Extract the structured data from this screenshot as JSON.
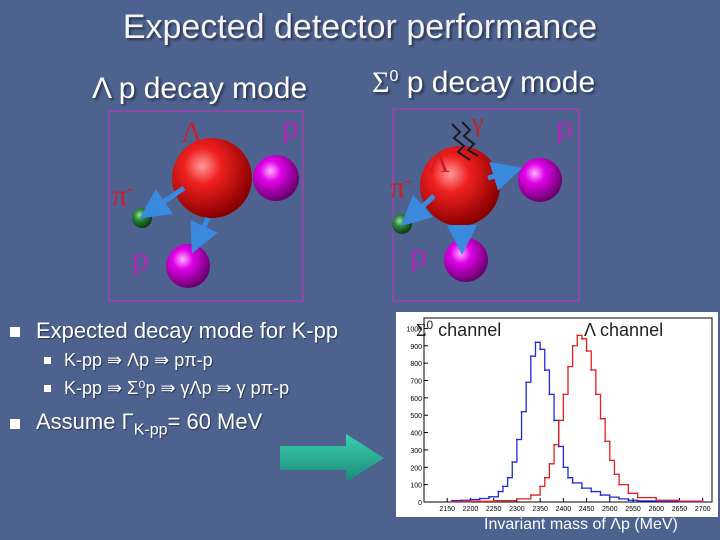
{
  "title": "Expected detector performance",
  "lambda_panel": {
    "header": "Λ p decay mode",
    "labels": {
      "lambda": "Λ",
      "p_top": "p",
      "pi": "π",
      "pi_sup": "-",
      "p_bottom": "p"
    }
  },
  "sigma_panel": {
    "header_sym": "Σ",
    "header_sup": "0",
    "header_rest": " p decay mode",
    "labels": {
      "gamma": "γ",
      "lambda": "Λ",
      "p_top": "p",
      "pi": "π",
      "pi_sup": "-",
      "p_bottom": "p"
    }
  },
  "bullets": {
    "b1": "Expected decay mode for K-pp",
    "b1a": "K-pp ⇛ Λp ⇛  pπ-p",
    "b1b": "K-pp ⇛ Σ⁰p ⇛ γΛp ⇛ γ pπ-p",
    "b2_pre": "Assume  Γ",
    "b2_sub": "K-pp",
    "b2_post": "= 60 MeV"
  },
  "colors": {
    "background": "#4e6290",
    "lambda_ball": "#e01010",
    "proton_ball": "#d000d8",
    "pion_ball": "#2a8a3a",
    "arrow": "#3a8ae0",
    "sigma_hist": "#1f2bd6",
    "lambda_hist": "#e02020"
  },
  "chart_data": {
    "type": "line",
    "xlabel": "Invariant mass of Λp (MeV)",
    "x_ticks": [
      "2150",
      "2200",
      "2250",
      "2300",
      "2350",
      "2400",
      "2450",
      "2500",
      "2550",
      "2600",
      "2650",
      "2700"
    ],
    "y_ticks": [
      "1000",
      "900",
      "800",
      "700",
      "600",
      "500",
      "400",
      "300",
      "200",
      "100",
      "0"
    ],
    "xlim": [
      2100,
      2720
    ],
    "ylim": [
      0,
      1060
    ],
    "series": [
      {
        "name": "Σ0 channel",
        "color": "#1f2bd6",
        "x": [
          2160,
          2180,
          2200,
          2220,
          2240,
          2260,
          2270,
          2280,
          2290,
          2300,
          2310,
          2320,
          2330,
          2340,
          2350,
          2360,
          2370,
          2380,
          2390,
          2400,
          2410,
          2420,
          2440,
          2460,
          2480,
          2500,
          2520,
          2540,
          2560,
          2600,
          2650,
          2700
        ],
        "y": [
          8,
          10,
          14,
          20,
          30,
          60,
          90,
          140,
          230,
          360,
          520,
          690,
          840,
          920,
          880,
          760,
          620,
          470,
          320,
          200,
          140,
          110,
          80,
          60,
          40,
          28,
          18,
          10,
          6,
          4,
          2,
          1
        ]
      },
      {
        "name": "Λ channel",
        "color": "#e02020",
        "x": [
          2160,
          2200,
          2250,
          2300,
          2330,
          2350,
          2360,
          2370,
          2380,
          2390,
          2400,
          2410,
          2420,
          2430,
          2440,
          2450,
          2460,
          2470,
          2480,
          2490,
          2500,
          2510,
          2520,
          2540,
          2560,
          2600,
          2650,
          2700
        ],
        "y": [
          2,
          4,
          8,
          18,
          40,
          90,
          140,
          220,
          330,
          470,
          620,
          780,
          900,
          960,
          940,
          870,
          760,
          620,
          480,
          350,
          240,
          160,
          100,
          50,
          25,
          10,
          5,
          2
        ]
      }
    ],
    "legend": {
      "sigma_sym": "Σ",
      "sigma_sup": "0",
      "sigma_rest": " channel",
      "lambda": "Λ channel"
    },
    "grid": false
  }
}
